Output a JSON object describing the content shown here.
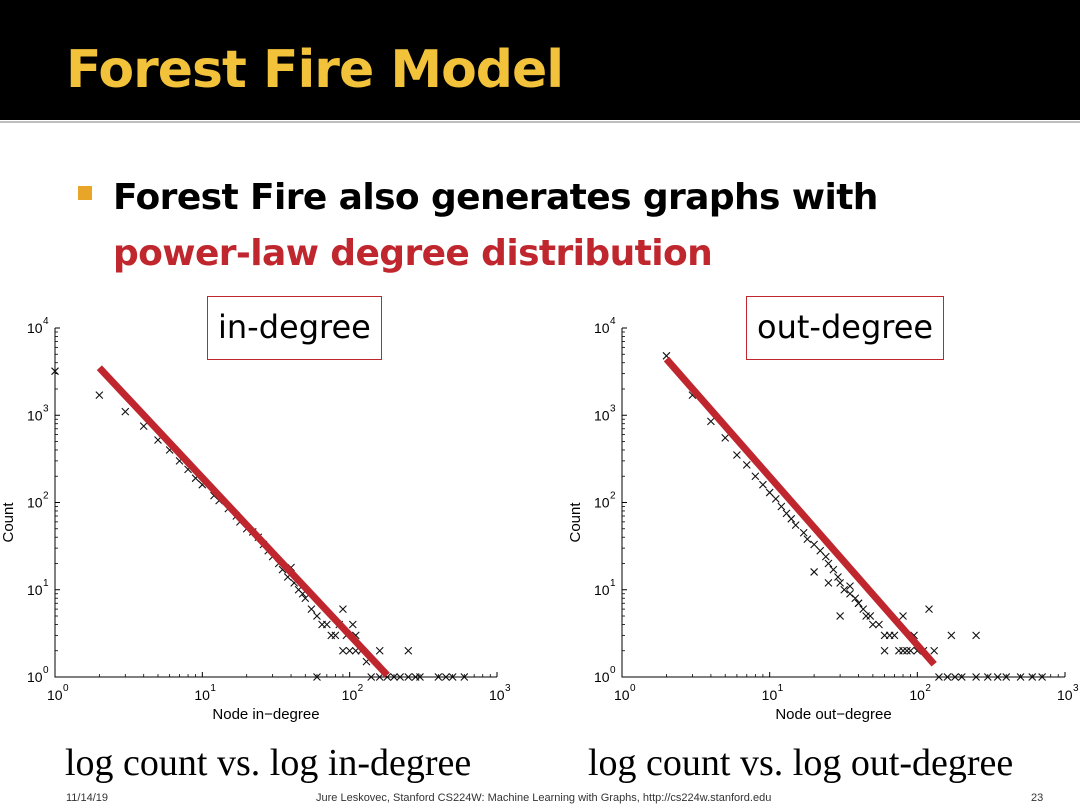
{
  "slide": {
    "title": "Forest Fire Model",
    "bullet": {
      "text": "Forest Fire also generates graphs with",
      "emphasis": "power-law degree distribution"
    },
    "captions": [
      "log count vs. log in-degree",
      "log count vs. log out-degree"
    ],
    "footer": {
      "date": "11/14/19",
      "credit": "Jure Leskovec, Stanford CS224W: Machine Learning with Graphs, http://cs224w.stanford.edu",
      "page": "23"
    },
    "colors": {
      "title": "#f2c23a",
      "bullet": "#e8a628",
      "emphasis": "#c0262d",
      "fit_line": "#c0262d"
    }
  },
  "chart_data": [
    {
      "type": "scatter",
      "label_box": "in-degree",
      "xlabel": "Node in−degree",
      "ylabel": "Count",
      "x_scale": "log",
      "y_scale": "log",
      "xlim": [
        1,
        1000
      ],
      "ylim": [
        1,
        10000
      ],
      "x_ticks": [
        {
          "base": "10",
          "exp": "0"
        },
        {
          "base": "10",
          "exp": "1"
        },
        {
          "base": "10",
          "exp": "2"
        },
        {
          "base": "10",
          "exp": "3"
        }
      ],
      "y_ticks": [
        {
          "base": "10",
          "exp": "0"
        },
        {
          "base": "10",
          "exp": "1"
        },
        {
          "base": "10",
          "exp": "2"
        },
        {
          "base": "10",
          "exp": "3"
        },
        {
          "base": "10",
          "exp": "4"
        }
      ],
      "points": [
        [
          1,
          3200
        ],
        [
          2,
          1700
        ],
        [
          3,
          1100
        ],
        [
          4,
          750
        ],
        [
          5,
          520
        ],
        [
          6,
          400
        ],
        [
          7,
          300
        ],
        [
          8,
          240
        ],
        [
          9,
          190
        ],
        [
          10,
          160
        ],
        [
          12,
          120
        ],
        [
          13,
          105
        ],
        [
          15,
          85
        ],
        [
          17,
          70
        ],
        [
          18,
          60
        ],
        [
          20,
          50
        ],
        [
          22,
          46
        ],
        [
          24,
          40
        ],
        [
          26,
          33
        ],
        [
          28,
          28
        ],
        [
          30,
          24
        ],
        [
          33,
          20
        ],
        [
          35,
          17
        ],
        [
          38,
          14
        ],
        [
          40,
          18
        ],
        [
          42,
          12
        ],
        [
          45,
          10
        ],
        [
          48,
          9
        ],
        [
          50,
          8
        ],
        [
          55,
          6
        ],
        [
          60,
          5
        ],
        [
          65,
          4
        ],
        [
          70,
          4
        ],
        [
          75,
          3
        ],
        [
          80,
          3
        ],
        [
          85,
          4
        ],
        [
          90,
          6
        ],
        [
          95,
          3
        ],
        [
          100,
          2
        ],
        [
          105,
          4
        ],
        [
          110,
          2
        ],
        [
          120,
          2
        ],
        [
          130,
          1.5
        ],
        [
          140,
          1
        ],
        [
          160,
          1
        ],
        [
          180,
          1
        ],
        [
          200,
          1
        ],
        [
          220,
          1
        ],
        [
          250,
          1
        ],
        [
          280,
          1
        ],
        [
          300,
          1
        ],
        [
          400,
          1
        ],
        [
          450,
          1
        ],
        [
          500,
          1
        ],
        [
          600,
          1
        ],
        [
          60,
          1
        ],
        [
          90,
          2
        ],
        [
          110,
          3
        ],
        [
          160,
          2
        ],
        [
          250,
          2
        ]
      ],
      "fit_line": [
        [
          2,
          3500
        ],
        [
          180,
          1.05
        ]
      ]
    },
    {
      "type": "scatter",
      "label_box": "out-degree",
      "xlabel": "Node out−degree",
      "ylabel": "Count",
      "x_scale": "log",
      "y_scale": "log",
      "xlim": [
        1,
        1000
      ],
      "ylim": [
        1,
        10000
      ],
      "x_ticks": [
        {
          "base": "10",
          "exp": "0"
        },
        {
          "base": "10",
          "exp": "1"
        },
        {
          "base": "10",
          "exp": "2"
        },
        {
          "base": "10",
          "exp": "3"
        }
      ],
      "y_ticks": [
        {
          "base": "10",
          "exp": "0"
        },
        {
          "base": "10",
          "exp": "1"
        },
        {
          "base": "10",
          "exp": "2"
        },
        {
          "base": "10",
          "exp": "3"
        },
        {
          "base": "10",
          "exp": "4"
        }
      ],
      "points": [
        [
          2,
          4800
        ],
        [
          3,
          1700
        ],
        [
          4,
          850
        ],
        [
          5,
          550
        ],
        [
          6,
          350
        ],
        [
          7,
          270
        ],
        [
          8,
          200
        ],
        [
          9,
          160
        ],
        [
          10,
          130
        ],
        [
          11,
          110
        ],
        [
          12,
          90
        ],
        [
          13,
          75
        ],
        [
          14,
          65
        ],
        [
          15,
          55
        ],
        [
          17,
          45
        ],
        [
          18,
          38
        ],
        [
          20,
          33
        ],
        [
          22,
          28
        ],
        [
          24,
          24
        ],
        [
          25,
          20
        ],
        [
          27,
          17
        ],
        [
          29,
          14
        ],
        [
          30,
          12
        ],
        [
          32,
          10
        ],
        [
          35,
          9
        ],
        [
          38,
          8
        ],
        [
          40,
          7
        ],
        [
          43,
          6
        ],
        [
          45,
          5
        ],
        [
          48,
          5
        ],
        [
          50,
          4
        ],
        [
          55,
          4
        ],
        [
          60,
          3
        ],
        [
          65,
          3
        ],
        [
          70,
          3
        ],
        [
          75,
          2
        ],
        [
          80,
          2
        ],
        [
          85,
          2
        ],
        [
          90,
          2
        ],
        [
          95,
          3
        ],
        [
          100,
          2
        ],
        [
          110,
          2
        ],
        [
          120,
          6
        ],
        [
          130,
          2
        ],
        [
          140,
          1
        ],
        [
          160,
          1
        ],
        [
          180,
          1
        ],
        [
          200,
          1
        ],
        [
          250,
          1
        ],
        [
          300,
          1
        ],
        [
          350,
          1
        ],
        [
          400,
          1
        ],
        [
          500,
          1
        ],
        [
          600,
          1
        ],
        [
          700,
          1
        ],
        [
          60,
          2
        ],
        [
          80,
          5
        ],
        [
          170,
          3
        ],
        [
          250,
          3
        ],
        [
          30,
          5
        ],
        [
          40,
          7
        ],
        [
          25,
          12
        ],
        [
          20,
          16
        ],
        [
          35,
          11
        ]
      ],
      "fit_line": [
        [
          2,
          4400
        ],
        [
          130,
          1.4
        ]
      ]
    }
  ]
}
